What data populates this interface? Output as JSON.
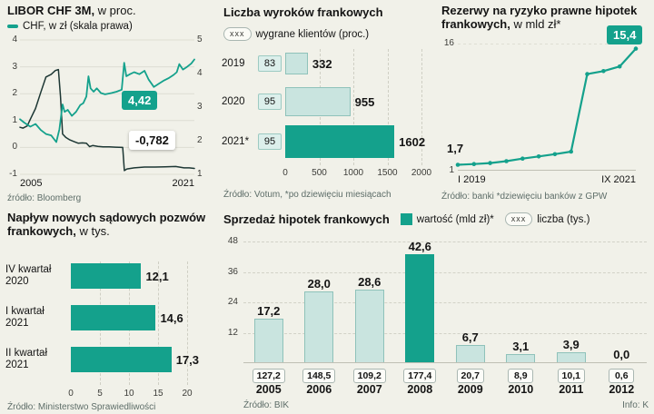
{
  "colors": {
    "teal": "#14a18c",
    "teal_light": "#c9e4df",
    "teal_light_border": "#8fc2ba",
    "line_dark": "#1d3734",
    "bg": "#f1f1e9",
    "grid": "#deded3",
    "text": "#141414",
    "muted": "#5d6d68"
  },
  "chart_data": [
    {
      "id": "libor-chf",
      "type": "line",
      "title": "LIBOR CHF 3M,",
      "title_suffix": " w proc.",
      "legend_line2": "CHF, w zł (skala prawa)",
      "source": "źródło: Bloomberg",
      "x_range": [
        2005,
        2021.8
      ],
      "x_tick_labels": [
        "2005",
        "2021"
      ],
      "left_axis": {
        "range": [
          -1,
          4
        ],
        "ticks": [
          4,
          3,
          2,
          1,
          0,
          -1
        ]
      },
      "right_axis": {
        "range": [
          1,
          5
        ],
        "ticks": [
          5,
          4,
          3,
          2,
          1
        ]
      },
      "badges": {
        "chf": "4,42",
        "libor": "-0,782"
      },
      "series": [
        {
          "name": "LIBOR CHF 3M (proc.)",
          "axis": "left",
          "points": [
            [
              2005,
              0.75
            ],
            [
              2005.3,
              0.72
            ],
            [
              2005.7,
              0.8
            ],
            [
              2006,
              1.05
            ],
            [
              2006.5,
              1.45
            ],
            [
              2007,
              2.05
            ],
            [
              2007.5,
              2.62
            ],
            [
              2008,
              2.72
            ],
            [
              2008.4,
              2.86
            ],
            [
              2008.7,
              2.9
            ],
            [
              2008.9,
              1.9
            ],
            [
              2009.1,
              0.5
            ],
            [
              2009.4,
              0.38
            ],
            [
              2009.8,
              0.28
            ],
            [
              2010.2,
              0.22
            ],
            [
              2010.6,
              0.16
            ],
            [
              2011,
              0.17
            ],
            [
              2011.4,
              0.16
            ],
            [
              2011.7,
              0.03
            ],
            [
              2012,
              0.07
            ],
            [
              2012.5,
              0.04
            ],
            [
              2013,
              0.02
            ],
            [
              2013.6,
              0.02
            ],
            [
              2014.2,
              0.01
            ],
            [
              2014.9,
              0.0
            ],
            [
              2015.05,
              -0.86
            ],
            [
              2015.3,
              -0.8
            ],
            [
              2016,
              -0.76
            ],
            [
              2017,
              -0.73
            ],
            [
              2018,
              -0.73
            ],
            [
              2019,
              -0.72
            ],
            [
              2020,
              -0.71
            ],
            [
              2020.8,
              -0.76
            ],
            [
              2021.3,
              -0.76
            ],
            [
              2021.8,
              -0.782
            ]
          ]
        },
        {
          "name": "CHF w zł (skala prawa)",
          "axis": "right",
          "points": [
            [
              2005,
              2.64
            ],
            [
              2005.4,
              2.54
            ],
            [
              2006,
              2.42
            ],
            [
              2006.5,
              2.5
            ],
            [
              2007,
              2.32
            ],
            [
              2007.5,
              2.2
            ],
            [
              2008,
              2.16
            ],
            [
              2008.5,
              1.96
            ],
            [
              2008.8,
              2.34
            ],
            [
              2009.1,
              3.08
            ],
            [
              2009.3,
              2.86
            ],
            [
              2009.6,
              2.92
            ],
            [
              2010,
              2.74
            ],
            [
              2010.4,
              2.86
            ],
            [
              2010.8,
              3.06
            ],
            [
              2011.1,
              3.12
            ],
            [
              2011.4,
              3.32
            ],
            [
              2011.6,
              3.92
            ],
            [
              2011.8,
              3.56
            ],
            [
              2012.1,
              3.46
            ],
            [
              2012.4,
              3.56
            ],
            [
              2012.8,
              3.42
            ],
            [
              2013.2,
              3.38
            ],
            [
              2013.8,
              3.42
            ],
            [
              2014.3,
              3.46
            ],
            [
              2014.8,
              3.52
            ],
            [
              2015.04,
              4.32
            ],
            [
              2015.25,
              3.92
            ],
            [
              2015.6,
              3.98
            ],
            [
              2016,
              4.04
            ],
            [
              2016.5,
              3.98
            ],
            [
              2017,
              4.08
            ],
            [
              2017.4,
              3.82
            ],
            [
              2017.9,
              3.6
            ],
            [
              2018.3,
              3.68
            ],
            [
              2018.8,
              3.78
            ],
            [
              2019.3,
              3.86
            ],
            [
              2019.8,
              3.96
            ],
            [
              2020.1,
              4.04
            ],
            [
              2020.35,
              4.28
            ],
            [
              2020.7,
              4.12
            ],
            [
              2021.1,
              4.2
            ],
            [
              2021.5,
              4.3
            ],
            [
              2021.8,
              4.42
            ]
          ]
        }
      ]
    },
    {
      "id": "wyroki-frankowe",
      "type": "bar-horizontal",
      "title": "Liczba wyroków frankowych",
      "legend_box": "xxx",
      "legend_label": "wygrane klientów (proc.)",
      "source": "Źródło: Votum, *po dziewięciu miesiącach",
      "x_max": 2000,
      "x_ticks": [
        "0",
        "500",
        "1000",
        "1500",
        "2000"
      ],
      "x_tick_values": [
        0,
        500,
        1000,
        1500,
        2000
      ],
      "rows": [
        {
          "label": "2019",
          "pct": "83",
          "value": 332,
          "value_label": "332",
          "highlight": false
        },
        {
          "label": "2020",
          "pct": "95",
          "value": 955,
          "value_label": "955",
          "highlight": false
        },
        {
          "label": "2021*",
          "pct": "95",
          "value": 1602,
          "value_label": "1602",
          "highlight": true
        }
      ]
    },
    {
      "id": "rezerwy-prawne",
      "type": "line",
      "title": "Rezerwy na ryzyko prawne hipotek frankowych,",
      "title_suffix": " w mld zł*",
      "source": "Źródło: banki *dziewięciu banków z GPW",
      "x_tick_labels": [
        "I 2019",
        "IX 2021"
      ],
      "y_axis": {
        "range": [
          1,
          16
        ],
        "ticks": [
          16,
          1
        ]
      },
      "start_label": "1,7",
      "end_badge": "15,4",
      "series": [
        {
          "name": "rezerwy (mld zł)",
          "points": [
            [
              0,
              1.7
            ],
            [
              1,
              1.78
            ],
            [
              2,
              1.9
            ],
            [
              3,
              2.12
            ],
            [
              4,
              2.42
            ],
            [
              5,
              2.68
            ],
            [
              6,
              2.95
            ],
            [
              7,
              3.25
            ],
            [
              8,
              12.4
            ],
            [
              9,
              12.75
            ],
            [
              10,
              13.3
            ],
            [
              11,
              15.4
            ]
          ]
        }
      ]
    },
    {
      "id": "pozwy-frankowe",
      "type": "bar-horizontal",
      "title": "Napływ nowych sądowych pozwów frankowych,",
      "title_suffix": " w tys.",
      "source": "Źródło: Ministerstwo Sprawiedliwości",
      "x_max": 20,
      "x_ticks": [
        "0",
        "5",
        "10",
        "15",
        "20"
      ],
      "x_tick_values": [
        0,
        5,
        10,
        15,
        20
      ],
      "rows": [
        {
          "label_line1": "IV kwartał",
          "label_line2": "2020",
          "value": 12.1,
          "value_label": "12,1"
        },
        {
          "label_line1": "I kwartał",
          "label_line2": "2021",
          "value": 14.6,
          "value_label": "14,6"
        },
        {
          "label_line1": "II kwartał",
          "label_line2": "2021",
          "value": 17.3,
          "value_label": "17,3"
        }
      ]
    },
    {
      "id": "sprzedaz-hipotek",
      "type": "bar",
      "title": "Sprzedaż hipotek frankowych",
      "legend": [
        {
          "swatch": "teal",
          "label": "wartość (mld zł)*"
        },
        {
          "box": "xxx",
          "label": "liczba (tys.)"
        }
      ],
      "source": "Źródło: BIK",
      "note": "Info: K",
      "categories": [
        "2005",
        "2006",
        "2007",
        "2008",
        "2009",
        "2010",
        "2011",
        "2012"
      ],
      "values": [
        17.2,
        28.0,
        28.6,
        42.6,
        6.7,
        3.1,
        3.9,
        0.0
      ],
      "value_labels": [
        "17,2",
        "28,0",
        "28,6",
        "42,6",
        "6,7",
        "3,1",
        "3,9",
        "0,0"
      ],
      "counts": [
        "127,2",
        "148,5",
        "109,2",
        "177,4",
        "20,7",
        "8,9",
        "10,1",
        "0,6"
      ],
      "highlight_index": 3,
      "y_max": 48,
      "y_ticks": [
        48,
        36,
        24,
        12
      ]
    }
  ]
}
